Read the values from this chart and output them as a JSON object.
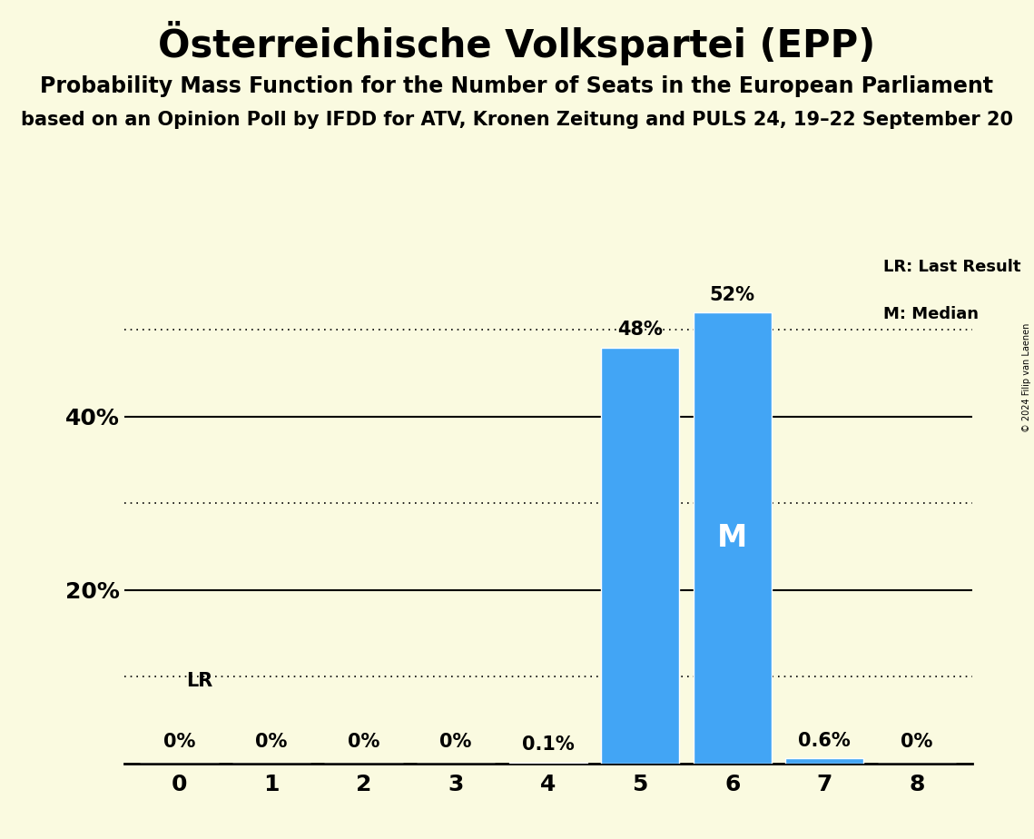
{
  "title": "Österreichische Volkspartei (EPP)",
  "subtitle1": "Probability Mass Function for the Number of Seats in the European Parliament",
  "subtitle2": "based on an Opinion Poll by IFDD for ATV, Kronen Zeitung and PULS 24, 19–22 September 20",
  "copyright": "© 2024 Filip van Laenen",
  "categories": [
    0,
    1,
    2,
    3,
    4,
    5,
    6,
    7,
    8
  ],
  "values": [
    0.0,
    0.0,
    0.0,
    0.0,
    0.1,
    48.0,
    52.0,
    0.6,
    0.0
  ],
  "bar_color": "#42A5F5",
  "background_color": "#FAFAE0",
  "median_bar": 6,
  "value_labels": [
    "0%",
    "0%",
    "0%",
    "0%",
    "0.1%",
    "48%",
    "52%",
    "0.6%",
    "0%"
  ],
  "ylim": [
    0,
    60
  ],
  "solid_gridlines": [
    20,
    40
  ],
  "dotted_gridlines": [
    10,
    30,
    50
  ],
  "yticks_labeled": [
    20,
    40
  ],
  "ytick_labels": [
    "20%",
    "40%"
  ],
  "legend_text": [
    "LR: Last Result",
    "M: Median"
  ],
  "title_fontsize": 30,
  "subtitle1_fontsize": 17,
  "subtitle2_fontsize": 15,
  "label_fontsize": 15,
  "tick_fontsize": 18
}
